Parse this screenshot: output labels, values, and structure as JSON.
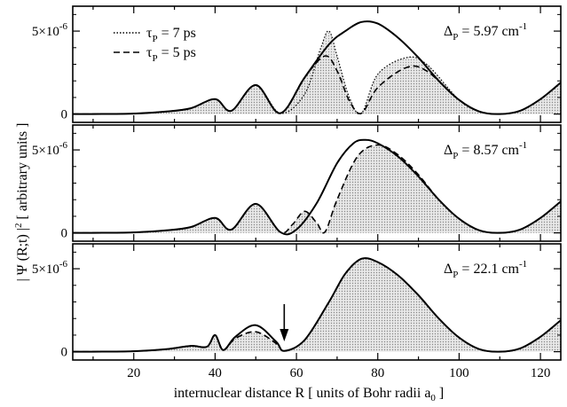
{
  "figure": {
    "ylabel_main": "| Ψ (R;t) |",
    "ylabel_sup": "2",
    "ylabel_rest": "[ arbitrary units ]",
    "xlabel_main": "internuclear distance R [ units of Bohr radii a",
    "xlabel_sub": "0",
    "xlabel_end": "]"
  },
  "chart_data": [
    {
      "type": "line",
      "panel": "top",
      "xlim": [
        5,
        125
      ],
      "ylim": [
        -5e-07,
        6.5e-06
      ],
      "ytick_labels": [
        "0",
        "5×10",
        "-6"
      ],
      "annotation": {
        "delta": "Δ",
        "sub": "P",
        "text": " = 5.97 cm",
        "sup": "-1"
      },
      "legend": [
        {
          "tau": "τ",
          "sub": "P",
          "text": " = 7 ps",
          "style": "dotted"
        },
        {
          "tau": "τ",
          "sub": "P",
          "text": " = 5 ps",
          "style": "dashed"
        }
      ],
      "series": [
        {
          "style": "solid",
          "points": [
            [
              5,
              0
            ],
            [
              10,
              0
            ],
            [
              20,
              3e-08
            ],
            [
              28,
              1.5e-07
            ],
            [
              34,
              3.5e-07
            ],
            [
              40,
              9e-07
            ],
            [
              44,
              2e-07
            ],
            [
              50,
              1.75e-06
            ],
            [
              56,
              5e-08
            ],
            [
              62,
              2.2e-06
            ],
            [
              68,
              4.2e-06
            ],
            [
              72,
              5e-06
            ],
            [
              76,
              5.55e-06
            ],
            [
              80,
              5.45e-06
            ],
            [
              85,
              4.6e-06
            ],
            [
              90,
              3.4e-06
            ],
            [
              95,
              2e-06
            ],
            [
              100,
              8.5e-07
            ],
            [
              105,
              1.5e-07
            ],
            [
              110,
              0
            ],
            [
              115,
              2e-07
            ],
            [
              120,
              9e-07
            ],
            [
              125,
              1.9e-06
            ]
          ]
        },
        {
          "style": "dotted",
          "points": [
            [
              5,
              0
            ],
            [
              10,
              0
            ],
            [
              20,
              3e-08
            ],
            [
              28,
              1.5e-07
            ],
            [
              34,
              3.5e-07
            ],
            [
              40,
              9e-07
            ],
            [
              44,
              2e-07
            ],
            [
              50,
              1.75e-06
            ],
            [
              56,
              5e-08
            ],
            [
              62,
              1.2e-06
            ],
            [
              66,
              4e-06
            ],
            [
              68,
              5e-06
            ],
            [
              70,
              3.5e-06
            ],
            [
              73,
              1e-06
            ],
            [
              76,
              5e-08
            ],
            [
              80,
              2.4e-06
            ],
            [
              87,
              3.4e-06
            ],
            [
              92,
              3e-06
            ],
            [
              100,
              8.5e-07
            ],
            [
              105,
              1.5e-07
            ],
            [
              110,
              0
            ],
            [
              115,
              2e-07
            ],
            [
              120,
              9e-07
            ],
            [
              125,
              1.9e-06
            ]
          ]
        },
        {
          "style": "dashed",
          "points": [
            [
              5,
              0
            ],
            [
              10,
              0
            ],
            [
              20,
              3e-08
            ],
            [
              28,
              1.5e-07
            ],
            [
              34,
              3.5e-07
            ],
            [
              40,
              9e-07
            ],
            [
              44,
              2e-07
            ],
            [
              50,
              1.75e-06
            ],
            [
              56,
              5e-08
            ],
            [
              62,
              2.2e-06
            ],
            [
              67,
              3.5e-06
            ],
            [
              70,
              2.6e-06
            ],
            [
              73,
              8e-07
            ],
            [
              76,
              5e-08
            ],
            [
              80,
              1.6e-06
            ],
            [
              87,
              2.8e-06
            ],
            [
              92,
              2.6e-06
            ],
            [
              100,
              8.5e-07
            ],
            [
              105,
              1.5e-07
            ],
            [
              110,
              0
            ],
            [
              115,
              2e-07
            ],
            [
              120,
              9e-07
            ],
            [
              125,
              1.9e-06
            ]
          ]
        }
      ]
    },
    {
      "type": "line",
      "panel": "middle",
      "xlim": [
        5,
        125
      ],
      "ylim": [
        -5e-07,
        6.5e-06
      ],
      "ytick_labels": [
        "0",
        "5×10",
        "-6"
      ],
      "annotation": {
        "delta": "Δ",
        "sub": "P",
        "text": " = 8.57 cm",
        "sup": "-1"
      },
      "series": [
        {
          "style": "solid",
          "points": [
            [
              5,
              0
            ],
            [
              10,
              0
            ],
            [
              20,
              3e-08
            ],
            [
              28,
              1.5e-07
            ],
            [
              34,
              3.5e-07
            ],
            [
              40,
              9e-07
            ],
            [
              44,
              2e-07
            ],
            [
              50,
              1.75e-06
            ],
            [
              56,
              5e-08
            ],
            [
              60,
              2e-07
            ],
            [
              65,
              1.8e-06
            ],
            [
              70,
              4.2e-06
            ],
            [
              74,
              5.4e-06
            ],
            [
              77,
              5.6e-06
            ],
            [
              80,
              5.4e-06
            ],
            [
              85,
              4.6e-06
            ],
            [
              90,
              3.4e-06
            ],
            [
              95,
              2e-06
            ],
            [
              100,
              8.5e-07
            ],
            [
              105,
              1.5e-07
            ],
            [
              110,
              0
            ],
            [
              115,
              2e-07
            ],
            [
              120,
              9e-07
            ],
            [
              125,
              1.9e-06
            ]
          ]
        },
        {
          "style": "dashed",
          "points": [
            [
              5,
              0
            ],
            [
              10,
              0
            ],
            [
              20,
              3e-08
            ],
            [
              28,
              1.5e-07
            ],
            [
              34,
              3.5e-07
            ],
            [
              40,
              9e-07
            ],
            [
              44,
              2e-07
            ],
            [
              50,
              1.75e-06
            ],
            [
              56,
              5e-08
            ],
            [
              59,
              5e-07
            ],
            [
              62,
              1.3e-06
            ],
            [
              65,
              6e-07
            ],
            [
              67,
              5e-08
            ],
            [
              70,
              2e-06
            ],
            [
              75,
              4.6e-06
            ],
            [
              80,
              5.3e-06
            ],
            [
              85,
              4.7e-06
            ],
            [
              90,
              3.5e-06
            ],
            [
              95,
              2e-06
            ],
            [
              100,
              8.5e-07
            ],
            [
              105,
              1.5e-07
            ],
            [
              110,
              0
            ],
            [
              115,
              2e-07
            ],
            [
              120,
              9e-07
            ],
            [
              125,
              1.9e-06
            ]
          ]
        }
      ]
    },
    {
      "type": "line",
      "panel": "bottom",
      "xlim": [
        5,
        125
      ],
      "ylim": [
        -5e-07,
        6.5e-06
      ],
      "ytick_labels": [
        "0",
        "5×10",
        "-6"
      ],
      "annotation": {
        "delta": "Δ",
        "sub": "P",
        "text": " = 22.1 cm",
        "sup": "-1"
      },
      "arrow_x": 57,
      "series": [
        {
          "style": "solid",
          "points": [
            [
              5,
              0
            ],
            [
              10,
              0
            ],
            [
              20,
              3e-08
            ],
            [
              28,
              1.5e-07
            ],
            [
              34,
              3.5e-07
            ],
            [
              38,
              3e-07
            ],
            [
              40,
              1e-06
            ],
            [
              42,
              1e-07
            ],
            [
              45,
              9e-07
            ],
            [
              50,
              1.6e-06
            ],
            [
              55,
              6e-07
            ],
            [
              57,
              5e-08
            ],
            [
              62,
              7e-07
            ],
            [
              68,
              3e-06
            ],
            [
              72,
              4.7e-06
            ],
            [
              76,
              5.6e-06
            ],
            [
              80,
              5.4e-06
            ],
            [
              85,
              4.6e-06
            ],
            [
              90,
              3.4e-06
            ],
            [
              95,
              2e-06
            ],
            [
              100,
              8.5e-07
            ],
            [
              105,
              1.5e-07
            ],
            [
              110,
              0
            ],
            [
              115,
              2e-07
            ],
            [
              120,
              9e-07
            ],
            [
              125,
              1.9e-06
            ]
          ]
        },
        {
          "style": "dashed",
          "points": [
            [
              5,
              0
            ],
            [
              10,
              0
            ],
            [
              20,
              3e-08
            ],
            [
              28,
              1.5e-07
            ],
            [
              34,
              3.5e-07
            ],
            [
              38,
              3e-07
            ],
            [
              40,
              1e-06
            ],
            [
              42,
              1e-07
            ],
            [
              45,
              8e-07
            ],
            [
              50,
              1.2e-06
            ],
            [
              55,
              5e-07
            ],
            [
              57,
              5e-08
            ],
            [
              62,
              7e-07
            ],
            [
              68,
              3e-06
            ],
            [
              72,
              4.7e-06
            ],
            [
              76,
              5.6e-06
            ],
            [
              80,
              5.4e-06
            ],
            [
              85,
              4.6e-06
            ],
            [
              90,
              3.4e-06
            ],
            [
              95,
              2e-06
            ],
            [
              100,
              8.5e-07
            ],
            [
              105,
              1.5e-07
            ],
            [
              110,
              0
            ],
            [
              115,
              2e-07
            ],
            [
              120,
              9e-07
            ],
            [
              125,
              1.9e-06
            ]
          ]
        }
      ],
      "xticks": [
        20,
        40,
        60,
        80,
        100,
        120
      ]
    }
  ]
}
